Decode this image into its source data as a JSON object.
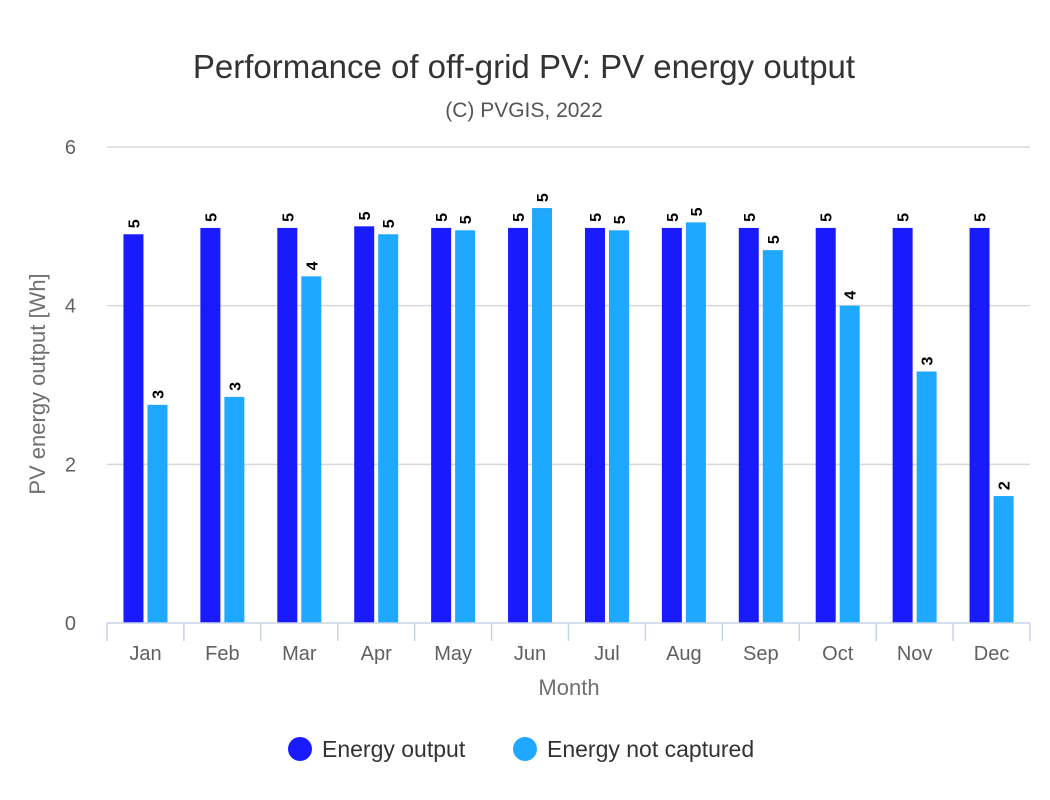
{
  "chart_data": {
    "type": "bar",
    "title": "Performance of off-grid PV: PV energy output",
    "subtitle": "(C) PVGIS, 2022",
    "xlabel": "Month",
    "ylabel": "PV energy output [Wh]",
    "ylim": [
      0,
      6
    ],
    "yticks": [
      "0",
      "2",
      "4",
      "6"
    ],
    "categories": [
      "Jan",
      "Feb",
      "Mar",
      "Apr",
      "May",
      "Jun",
      "Jul",
      "Aug",
      "Sep",
      "Oct",
      "Nov",
      "Dec"
    ],
    "series": [
      {
        "name": "Energy output",
        "color": "#1a1aff",
        "values": [
          4.9,
          4.98,
          4.98,
          5.0,
          4.98,
          4.98,
          4.98,
          4.98,
          4.98,
          4.98,
          4.98,
          4.98
        ],
        "labels": [
          "5",
          "5",
          "5",
          "5",
          "5",
          "5",
          "5",
          "5",
          "5",
          "5",
          "5",
          "5"
        ]
      },
      {
        "name": "Energy not captured",
        "color": "#1ea8ff",
        "values": [
          2.75,
          2.85,
          4.37,
          4.9,
          4.95,
          5.23,
          4.95,
          5.05,
          4.7,
          4.0,
          3.17,
          1.6
        ],
        "labels": [
          "3",
          "3",
          "4",
          "5",
          "5",
          "5",
          "5",
          "5",
          "5",
          "4",
          "3",
          "2"
        ]
      }
    ],
    "grid": true,
    "legend_position": "bottom-center"
  }
}
